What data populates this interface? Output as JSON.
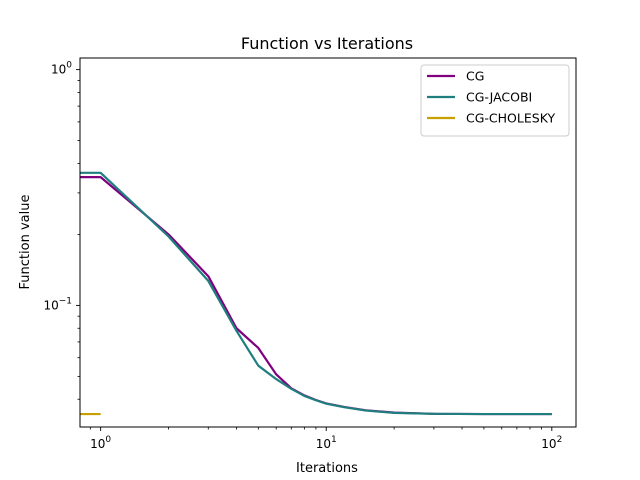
{
  "chart_data": {
    "type": "line",
    "title": "Function vs Iterations",
    "xlabel": "Iterations",
    "ylabel": "Function value",
    "xscale": "log",
    "yscale": "log",
    "xlim": [
      0.81,
      128
    ],
    "ylim": [
      0.0305,
      1.12
    ],
    "grid": false,
    "legend_position": "top-right",
    "x_ticks": [
      {
        "value": 1,
        "base": "10",
        "exp": "0"
      },
      {
        "value": 10,
        "base": "10",
        "exp": "1"
      },
      {
        "value": 100,
        "base": "10",
        "exp": "2"
      }
    ],
    "y_ticks": [
      {
        "value": 0.1,
        "base": "10",
        "exp": "−1"
      },
      {
        "value": 1,
        "base": "10",
        "exp": "0"
      }
    ],
    "series": [
      {
        "name": "CG",
        "color": "#800080",
        "x": [
          0,
          1,
          2,
          3,
          4,
          5,
          6,
          7,
          8,
          9,
          10,
          12,
          15,
          20,
          30,
          50,
          100
        ],
        "y": [
          0.35,
          0.35,
          0.2,
          0.133,
          0.08,
          0.066,
          0.051,
          0.0445,
          0.0415,
          0.0397,
          0.0384,
          0.0371,
          0.0359,
          0.0351,
          0.0347,
          0.0346,
          0.0346
        ]
      },
      {
        "name": "CG-JACOBI",
        "color": "#1f7f7f",
        "x": [
          0,
          1,
          2,
          3,
          4,
          5,
          6,
          7,
          8,
          9,
          10,
          12,
          15,
          20,
          30,
          50,
          100
        ],
        "y": [
          0.365,
          0.365,
          0.196,
          0.127,
          0.078,
          0.0555,
          0.0487,
          0.0443,
          0.0413,
          0.0396,
          0.0383,
          0.037,
          0.0358,
          0.035,
          0.0347,
          0.0346,
          0.0346
        ]
      },
      {
        "name": "CG-CHOLESKY",
        "color": "#c8a000",
        "x": [
          0,
          1
        ],
        "y": [
          0.0346,
          0.0346
        ]
      }
    ]
  }
}
